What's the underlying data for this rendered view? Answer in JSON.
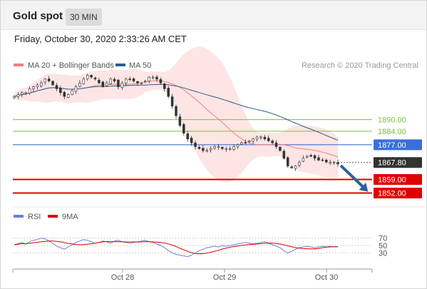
{
  "header": {
    "title": "Gold spot",
    "timeframe": "30 MIN"
  },
  "timestamp": "Friday, October 30, 2020 2:33:26 AM CET",
  "legend": {
    "items": [
      {
        "label": "MA 20 + Bollinger Bands",
        "color": "#f08080"
      },
      {
        "label": "MA 50",
        "color": "#2c5c8c"
      }
    ],
    "credit": "Research © 2020 Trading Central"
  },
  "rsi_legend": {
    "items": [
      {
        "label": "RSI",
        "color": "#6a7fe0"
      },
      {
        "label": "9MA",
        "color": "#dd0000"
      }
    ]
  },
  "chart_data": [
    {
      "type": "candlestick",
      "title": "Gold spot",
      "x_ticks": [
        "Oct 28",
        "Oct 29",
        "Oct 30"
      ],
      "y_range": [
        1847,
        1915
      ],
      "close": [
        1902,
        1903,
        1904,
        1904,
        1906,
        1907,
        1908,
        1909,
        1911,
        1910,
        1908,
        1906,
        1904,
        1902,
        1903,
        1905,
        1907,
        1909,
        1911,
        1913,
        1912,
        1911,
        1909,
        1907,
        1909,
        1911,
        1910,
        1907,
        1909,
        1911,
        1911,
        1910,
        1909,
        1909,
        1910,
        1912,
        1912,
        1911,
        1909,
        1906,
        1902,
        1897,
        1892,
        1887,
        1883,
        1880,
        1878,
        1876,
        1875,
        1874,
        1874,
        1875,
        1876,
        1876,
        1875,
        1875,
        1875,
        1876,
        1877,
        1878,
        1878,
        1879,
        1880,
        1881,
        1881,
        1880,
        1879,
        1878,
        1876,
        1874,
        1870,
        1866,
        1865,
        1866,
        1868,
        1870,
        1871,
        1871,
        1870,
        1869,
        1869,
        1868,
        1868,
        1868,
        1867
      ],
      "levels": [
        {
          "label": "1890.00",
          "value": 1890,
          "color": "#7bbf3d",
          "kind": "resistance"
        },
        {
          "label": "1884.00",
          "value": 1884,
          "color": "#7bbf3d",
          "kind": "resistance"
        },
        {
          "label": "1877.00",
          "value": 1877,
          "color": "#3a6fd8",
          "kind": "pivot"
        },
        {
          "label": "1867.80",
          "value": 1867.8,
          "color": "#333333",
          "kind": "last"
        },
        {
          "label": "1859.00",
          "value": 1859,
          "color": "#e00000",
          "kind": "support"
        },
        {
          "label": "1852.00",
          "value": 1852,
          "color": "#e00000",
          "kind": "support"
        }
      ],
      "series": [
        {
          "name": "MA 20 + Bollinger Bands",
          "color": "#f08080"
        },
        {
          "name": "MA 50",
          "color": "#2c5c8c"
        }
      ],
      "projection": {
        "from": 1867,
        "to": 1852,
        "direction": "down"
      }
    },
    {
      "type": "line",
      "title": "RSI",
      "y_ticks": [
        70,
        50,
        30
      ],
      "y_range": [
        0,
        100
      ],
      "series": [
        {
          "name": "RSI",
          "color": "#6a7fe0"
        },
        {
          "name": "9MA",
          "color": "#dd0000"
        }
      ],
      "rsi_values": [
        52,
        55,
        58,
        54,
        60,
        64,
        66,
        70,
        68,
        62,
        56,
        48,
        44,
        40,
        46,
        52,
        58,
        62,
        66,
        64,
        60,
        56,
        58,
        62,
        60,
        56,
        62,
        64,
        60,
        58,
        56,
        58,
        60,
        62,
        64,
        60,
        58,
        54,
        50,
        44,
        36,
        30,
        26,
        24,
        22,
        20,
        24,
        30,
        36,
        40,
        44,
        46,
        48,
        46,
        50,
        48,
        50,
        52,
        54,
        56,
        58,
        56,
        54,
        56,
        58,
        60,
        56,
        52,
        48,
        44,
        36,
        30,
        34,
        40,
        44,
        46,
        48,
        46,
        44,
        46,
        48,
        46,
        48,
        46,
        47
      ]
    }
  ]
}
